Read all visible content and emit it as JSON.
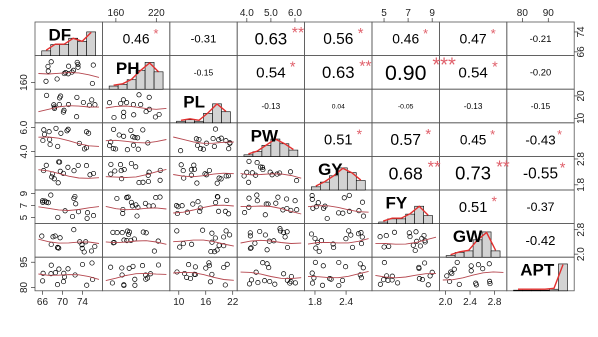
{
  "chart_data": {
    "type": "scatter-matrix",
    "variables": [
      "DF",
      "PH",
      "PL",
      "PW",
      "GY",
      "FY",
      "GW",
      "APT"
    ],
    "ticks": {
      "top": [
        {
          "col": 1,
          "labels": [
            "160",
            "220"
          ],
          "values": [
            160,
            220
          ],
          "range": [
            140,
            240
          ]
        },
        {
          "col": 3,
          "labels": [
            "4.0",
            "5.0",
            "6.0"
          ],
          "values": [
            4.0,
            5.0,
            6.0
          ],
          "range": [
            3.6,
            6.4
          ]
        },
        {
          "col": 5,
          "labels": [
            "5",
            "7",
            "9"
          ],
          "values": [
            5,
            7,
            9
          ],
          "range": [
            4,
            9.6
          ]
        },
        {
          "col": 7,
          "labels": [
            "80",
            "90"
          ],
          "values": [
            80,
            90
          ],
          "range": [
            74,
            100
          ]
        }
      ],
      "bottom": [
        {
          "col": 0,
          "labels": [
            "66",
            "70",
            "74"
          ],
          "values": [
            66,
            70,
            74
          ],
          "range": [
            64.5,
            78
          ]
        },
        {
          "col": 2,
          "labels": [
            "10",
            "16",
            "22"
          ],
          "values": [
            10,
            16,
            22
          ],
          "range": [
            8,
            23
          ]
        },
        {
          "col": 4,
          "labels": [
            "1.8",
            "2.4"
          ],
          "values": [
            1.8,
            2.4
          ],
          "range": [
            1.6,
            2.9
          ]
        },
        {
          "col": 6,
          "labels": [
            "2.0",
            "2.4",
            "2.8"
          ],
          "values": [
            2.0,
            2.4,
            2.8
          ],
          "range": [
            1.9,
            3.0
          ]
        }
      ],
      "left": [
        {
          "row": 1,
          "labels": [
            "160"
          ],
          "values": [
            160
          ],
          "range": [
            140,
            240
          ]
        },
        {
          "row": 3,
          "labels": [
            "4.0",
            "6.0"
          ],
          "values": [
            4.0,
            6.0
          ],
          "range": [
            3.6,
            6.4
          ]
        },
        {
          "row": 5,
          "labels": [
            "5",
            "7",
            "9"
          ],
          "values": [
            5,
            7,
            9
          ],
          "range": [
            4,
            9.6
          ]
        },
        {
          "row": 7,
          "labels": [
            "80",
            "95"
          ],
          "values": [
            80,
            95
          ],
          "range": [
            78,
            98
          ]
        }
      ],
      "right": [
        {
          "row": 0,
          "labels": [
            "66",
            "74"
          ],
          "values": [
            66,
            74
          ],
          "range": [
            64.5,
            78
          ]
        },
        {
          "row": 2,
          "labels": [
            "10",
            "20"
          ],
          "values": [
            10,
            20
          ],
          "range": [
            8,
            23
          ]
        },
        {
          "row": 4,
          "labels": [
            "1.8",
            "2.8"
          ],
          "values": [
            1.8,
            2.8
          ],
          "range": [
            1.6,
            2.9
          ]
        },
        {
          "row": 6,
          "labels": [
            "2.0",
            "2.8"
          ],
          "values": [
            2.0,
            2.8
          ],
          "range": [
            1.9,
            3.0
          ]
        }
      ]
    },
    "correlations": [
      {
        "row": 0,
        "col": 1,
        "r": "0.46",
        "stars": "*"
      },
      {
        "row": 0,
        "col": 2,
        "r": "-0.31",
        "stars": ""
      },
      {
        "row": 0,
        "col": 3,
        "r": "0.63",
        "stars": "**"
      },
      {
        "row": 0,
        "col": 4,
        "r": "0.56",
        "stars": "*"
      },
      {
        "row": 0,
        "col": 5,
        "r": "0.46",
        "stars": "*"
      },
      {
        "row": 0,
        "col": 6,
        "r": "0.47",
        "stars": "*"
      },
      {
        "row": 0,
        "col": 7,
        "r": "-0.21",
        "stars": ""
      },
      {
        "row": 1,
        "col": 2,
        "r": "-0.15",
        "stars": ""
      },
      {
        "row": 1,
        "col": 3,
        "r": "0.54",
        "stars": "*"
      },
      {
        "row": 1,
        "col": 4,
        "r": "0.63",
        "stars": "**"
      },
      {
        "row": 1,
        "col": 5,
        "r": "0.90",
        "stars": "***"
      },
      {
        "row": 1,
        "col": 6,
        "r": "0.54",
        "stars": "*"
      },
      {
        "row": 1,
        "col": 7,
        "r": "-0.20",
        "stars": ""
      },
      {
        "row": 2,
        "col": 3,
        "r": "-0.13",
        "stars": ""
      },
      {
        "row": 2,
        "col": 4,
        "r": "0.04",
        "stars": ""
      },
      {
        "row": 2,
        "col": 5,
        "r": "-0.05",
        "stars": ""
      },
      {
        "row": 2,
        "col": 6,
        "r": "-0.13",
        "stars": ""
      },
      {
        "row": 2,
        "col": 7,
        "r": "-0.15",
        "stars": ""
      },
      {
        "row": 3,
        "col": 4,
        "r": "0.51",
        "stars": "*"
      },
      {
        "row": 3,
        "col": 5,
        "r": "0.57",
        "stars": "*"
      },
      {
        "row": 3,
        "col": 6,
        "r": "0.45",
        "stars": "*"
      },
      {
        "row": 3,
        "col": 7,
        "r": "-0.43",
        "stars": "*"
      },
      {
        "row": 4,
        "col": 5,
        "r": "0.68",
        "stars": "**"
      },
      {
        "row": 4,
        "col": 6,
        "r": "0.73",
        "stars": "**"
      },
      {
        "row": 4,
        "col": 7,
        "r": "-0.55",
        "stars": "*"
      },
      {
        "row": 5,
        "col": 6,
        "r": "0.51",
        "stars": "*"
      },
      {
        "row": 5,
        "col": 7,
        "r": "-0.37",
        "stars": ""
      },
      {
        "row": 6,
        "col": 7,
        "r": "-0.42",
        "stars": ""
      }
    ],
    "colors": {
      "histogram_fill": "#d3d3d3",
      "density_line": "#e3302f",
      "smooth_line": "#b5474f",
      "points": "#000000",
      "stars": "#e0606b",
      "panel_border": "#555555"
    },
    "grid": false
  }
}
